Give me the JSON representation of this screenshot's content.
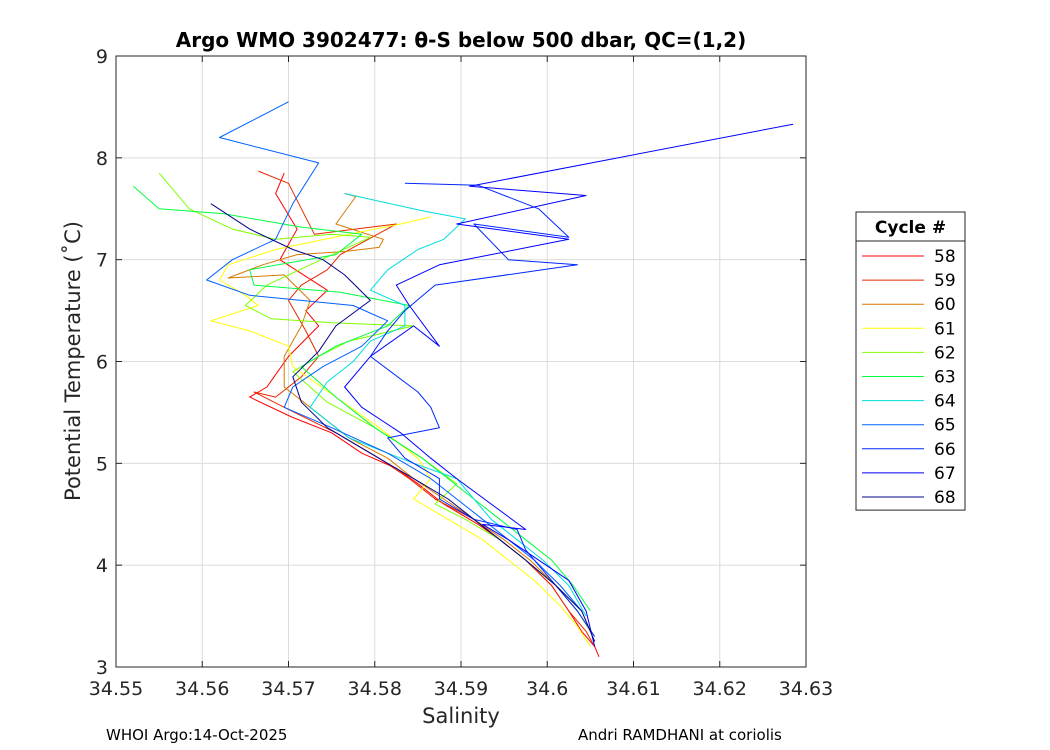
{
  "chart_data": {
    "type": "line",
    "title": "Argo WMO 3902477: θ-S below 500 dbar,  QC=(1,2)",
    "xlabel": "Salinity",
    "ylabel": "Potential Temperature (˚C)",
    "xlim": [
      34.55,
      34.63
    ],
    "ylim": [
      3,
      9
    ],
    "xticks": [
      "34.55",
      "34.56",
      "34.57",
      "34.58",
      "34.59",
      "34.6",
      "34.61",
      "34.62",
      "34.63"
    ],
    "yticks": [
      "3",
      "4",
      "5",
      "6",
      "7",
      "8",
      "9"
    ],
    "grid": true,
    "legend": {
      "title": "Cycle #",
      "position": "right"
    },
    "series": [
      {
        "name": "58",
        "color": "#ff0000",
        "x": [
          34.5695,
          34.5685,
          34.571,
          34.569,
          34.5745,
          34.572,
          34.5735,
          34.57,
          34.5675,
          34.5655,
          34.5705,
          34.575,
          34.5785,
          34.5825,
          34.585,
          34.588,
          34.592,
          34.5945,
          34.5975,
          34.6005,
          34.6025,
          34.604,
          34.6055,
          34.606
        ],
        "y": [
          7.85,
          7.65,
          7.3,
          7.0,
          6.7,
          6.5,
          6.35,
          6.05,
          5.75,
          5.65,
          5.45,
          5.3,
          5.1,
          4.95,
          4.8,
          4.6,
          4.4,
          4.25,
          4.05,
          3.8,
          3.55,
          3.35,
          3.2,
          3.1
        ]
      },
      {
        "name": "59",
        "color": "#e62800",
        "x": [
          34.5665,
          34.57,
          34.5715,
          34.573,
          34.5825,
          34.576,
          34.5745,
          34.5715,
          34.57,
          34.572,
          34.5735,
          34.5715,
          34.5685,
          34.566,
          34.5695,
          34.5755,
          34.5805,
          34.584,
          34.587,
          34.5915,
          34.5945,
          34.5975,
          34.6005,
          34.6025,
          34.6045,
          34.6055
        ],
        "y": [
          7.87,
          7.75,
          7.5,
          7.25,
          7.35,
          7.05,
          6.9,
          6.75,
          6.6,
          6.3,
          6.05,
          5.85,
          5.65,
          5.7,
          5.55,
          5.3,
          5.05,
          4.85,
          4.65,
          4.45,
          4.25,
          4.05,
          3.8,
          3.55,
          3.35,
          3.2
        ]
      },
      {
        "name": "60",
        "color": "#d67a00",
        "x": [
          34.5765,
          34.5778,
          34.5755,
          34.581,
          34.5805,
          34.5765,
          34.571,
          34.567,
          34.563,
          34.5695,
          34.5725,
          34.5715,
          34.5695,
          34.5695,
          34.5725,
          34.577,
          34.5815,
          34.5845,
          34.588,
          34.5915,
          34.595,
          34.598,
          34.601,
          34.6035,
          34.605
        ],
        "y": [
          7.65,
          7.62,
          7.35,
          7.2,
          7.12,
          7.08,
          7.05,
          6.95,
          6.82,
          6.85,
          6.6,
          6.35,
          6.05,
          5.75,
          5.55,
          5.25,
          5.05,
          4.85,
          4.65,
          4.45,
          4.25,
          4.05,
          3.8,
          3.55,
          3.35
        ]
      },
      {
        "name": "61",
        "color": "#ffff00",
        "x": [
          34.5865,
          34.583,
          34.577,
          34.5685,
          34.563,
          34.562,
          34.565,
          34.5665,
          34.561,
          34.5655,
          34.57,
          34.5705,
          34.5755,
          34.5805,
          34.585,
          34.5865,
          34.5845,
          34.5885,
          34.5925,
          34.5955,
          34.5985,
          34.6015,
          34.6035,
          34.605
        ],
        "y": [
          7.42,
          7.35,
          7.25,
          7.1,
          6.95,
          6.8,
          6.65,
          6.55,
          6.4,
          6.3,
          6.15,
          5.95,
          5.65,
          5.35,
          5.05,
          4.85,
          4.65,
          4.45,
          4.25,
          4.05,
          3.85,
          3.6,
          3.4,
          3.2
        ]
      },
      {
        "name": "62",
        "color": "#7fff00",
        "x": [
          34.555,
          34.5585,
          34.5635,
          34.5685,
          34.575,
          34.5795,
          34.5725,
          34.5675,
          34.565,
          34.568,
          34.575,
          34.5845,
          34.577,
          34.5735,
          34.5705,
          34.5745,
          34.58,
          34.5855,
          34.5895,
          34.587,
          34.5905,
          34.5945,
          34.5975,
          34.601,
          34.6035,
          34.605
        ],
        "y": [
          7.85,
          7.5,
          7.3,
          7.2,
          7.25,
          7.22,
          6.95,
          6.75,
          6.55,
          6.42,
          6.38,
          6.35,
          6.2,
          6.05,
          5.9,
          5.6,
          5.35,
          5.05,
          4.8,
          4.6,
          4.45,
          4.25,
          4.05,
          3.8,
          3.55,
          3.35
        ]
      },
      {
        "name": "63",
        "color": "#00ff40",
        "x": [
          34.552,
          34.555,
          34.5625,
          34.5715,
          34.5785,
          34.5755,
          34.5655,
          34.566,
          34.576,
          34.584,
          34.5815,
          34.5755,
          34.5715,
          34.5755,
          34.58,
          34.5855,
          34.5885,
          34.5915,
          34.5945,
          34.5975,
          34.6005,
          34.603,
          34.605
        ],
        "y": [
          7.72,
          7.5,
          7.45,
          7.32,
          7.25,
          7.05,
          6.9,
          6.75,
          6.68,
          6.55,
          6.35,
          6.15,
          5.95,
          5.65,
          5.35,
          5.05,
          4.85,
          4.65,
          4.45,
          4.25,
          4.05,
          3.8,
          3.55
        ]
      },
      {
        "name": "64",
        "color": "#00dddd",
        "x": [
          34.5765,
          34.5855,
          34.5905,
          34.588,
          34.585,
          34.5815,
          34.5795,
          34.5835,
          34.5835,
          34.5795,
          34.5775,
          34.5745,
          34.5725,
          34.577,
          34.5845,
          34.5895,
          34.591,
          34.5935,
          34.5965,
          34.5995,
          34.6025,
          34.6045
        ],
        "y": [
          7.65,
          7.48,
          7.4,
          7.2,
          7.1,
          6.9,
          6.7,
          6.55,
          6.35,
          6.2,
          6.0,
          5.8,
          5.55,
          5.25,
          5.0,
          4.85,
          4.7,
          4.45,
          4.25,
          4.05,
          3.8,
          3.5
        ]
      },
      {
        "name": "65",
        "color": "#0060ff",
        "x": [
          34.57,
          34.562,
          34.5735,
          34.5705,
          34.5685,
          34.5635,
          34.5605,
          34.5655,
          34.5775,
          34.5815,
          34.5785,
          34.574,
          34.5705,
          34.5695,
          34.575,
          34.5815,
          34.5865,
          34.5895,
          34.5925,
          34.5955,
          34.5985,
          34.6015,
          34.604
        ],
        "y": [
          8.55,
          8.2,
          7.95,
          7.55,
          7.2,
          7.0,
          6.8,
          6.65,
          6.55,
          6.4,
          6.15,
          5.95,
          5.75,
          5.55,
          5.35,
          5.1,
          4.85,
          4.65,
          4.45,
          4.25,
          4.05,
          3.8,
          3.55
        ]
      },
      {
        "name": "66",
        "color": "#0028ff",
        "x": [
          34.5835,
          34.592,
          34.599,
          34.6025,
          34.5915,
          34.5955,
          34.6035,
          34.587,
          34.5835,
          34.5815,
          34.5795,
          34.585,
          34.5865,
          34.5875,
          34.5815,
          34.5835,
          34.5875,
          34.5875,
          34.5915,
          34.5965,
          34.5975,
          34.6005,
          34.6035,
          34.6055
        ],
        "y": [
          7.75,
          7.73,
          7.5,
          7.22,
          7.35,
          7.0,
          6.95,
          6.75,
          6.5,
          6.3,
          6.05,
          5.7,
          5.55,
          5.35,
          5.25,
          5.05,
          4.85,
          4.65,
          4.45,
          4.35,
          4.15,
          3.85,
          3.55,
          3.3
        ]
      },
      {
        "name": "67",
        "color": "#0000ff",
        "x": [
          34.6285,
          34.591,
          34.6045,
          34.5895,
          34.6025,
          34.5875,
          34.5825,
          34.584,
          34.5875,
          34.5845,
          34.5795,
          34.5765,
          34.5785,
          34.583,
          34.5865,
          34.5895,
          34.5975,
          34.5925,
          34.5955,
          34.599,
          34.6025,
          34.6045,
          34.6055
        ],
        "y": [
          8.33,
          7.72,
          7.63,
          7.35,
          7.2,
          6.95,
          6.75,
          6.55,
          6.15,
          6.35,
          6.05,
          5.75,
          5.55,
          5.3,
          5.05,
          4.85,
          4.35,
          4.4,
          4.25,
          4.05,
          3.85,
          3.55,
          3.2
        ]
      },
      {
        "name": "68",
        "color": "#00008c",
        "x": [
          34.561,
          34.5655,
          34.5705,
          34.574,
          34.5765,
          34.5795,
          34.5755,
          34.5735,
          34.5705,
          34.5715,
          34.5745,
          34.5795,
          34.5845,
          34.5885,
          34.5915,
          34.5945,
          34.5975,
          34.601,
          34.604,
          34.6055
        ],
        "y": [
          7.55,
          7.3,
          7.1,
          7.0,
          6.85,
          6.6,
          6.35,
          6.1,
          5.85,
          5.6,
          5.35,
          5.1,
          4.85,
          4.65,
          4.45,
          4.25,
          4.05,
          3.8,
          3.55,
          3.25
        ]
      }
    ]
  },
  "footer": {
    "left": "WHOI Argo:14-Oct-2025",
    "right": "Andri RAMDHANI at coriolis"
  }
}
